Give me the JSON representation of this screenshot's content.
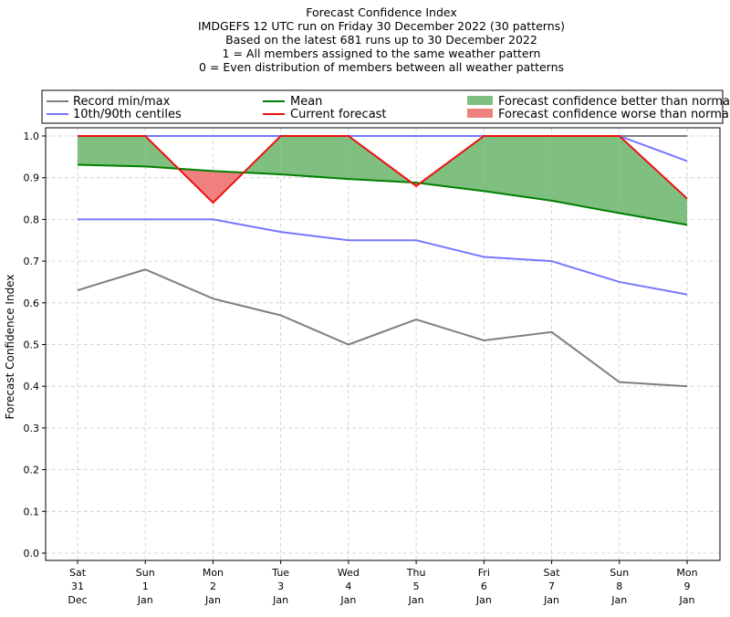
{
  "chart_data": {
    "type": "line",
    "title_lines": [
      "Forecast Confidence Index",
      "IMDGEFS 12 UTC run on Friday 30 December 2022 (30 patterns)",
      "Based on the latest 681 runs up to 30 December 2022",
      "1 = All members assigned to the same weather pattern",
      "0 = Even distribution of members between all weather patterns"
    ],
    "ylabel": "Forecast Confidence Index",
    "ylim": [
      0.0,
      1.0
    ],
    "yticks": [
      "0.0",
      "0.1",
      "0.2",
      "0.3",
      "0.4",
      "0.5",
      "0.6",
      "0.7",
      "0.8",
      "0.9",
      "1.0"
    ],
    "grid": true,
    "categories": [
      [
        "Sat",
        "31",
        "Dec"
      ],
      [
        "Sun",
        "1",
        "Jan"
      ],
      [
        "Mon",
        "2",
        "Jan"
      ],
      [
        "Tue",
        "3",
        "Jan"
      ],
      [
        "Wed",
        "4",
        "Jan"
      ],
      [
        "Thu",
        "5",
        "Jan"
      ],
      [
        "Fri",
        "6",
        "Jan"
      ],
      [
        "Sat",
        "7",
        "Jan"
      ],
      [
        "Sun",
        "8",
        "Jan"
      ],
      [
        "Mon",
        "9",
        "Jan"
      ]
    ],
    "series": [
      {
        "name": "Record min/max",
        "role": "record_min",
        "color": "#7f7f7f",
        "values": [
          0.63,
          0.68,
          0.61,
          0.57,
          0.5,
          0.56,
          0.51,
          0.53,
          0.41,
          0.4
        ]
      },
      {
        "name": "Record min/max",
        "role": "record_max",
        "color": "#7f7f7f",
        "values": [
          1.0,
          1.0,
          1.0,
          1.0,
          1.0,
          1.0,
          1.0,
          1.0,
          1.0,
          1.0
        ]
      },
      {
        "name": "10th/90th centiles",
        "role": "p10",
        "color": "#7777ff",
        "values": [
          0.8,
          0.8,
          0.8,
          0.77,
          0.75,
          0.75,
          0.71,
          0.7,
          0.65,
          0.62
        ]
      },
      {
        "name": "10th/90th centiles",
        "role": "p90",
        "color": "#7777ff",
        "values": [
          1.0,
          1.0,
          1.0,
          1.0,
          1.0,
          1.0,
          1.0,
          1.0,
          1.0,
          0.94
        ]
      },
      {
        "name": "Mean",
        "role": "mean",
        "color": "#007f00",
        "values": [
          0.931,
          0.927,
          0.916,
          0.908,
          0.897,
          0.888,
          0.868,
          0.845,
          0.815,
          0.787
        ]
      },
      {
        "name": "Current forecast",
        "role": "current",
        "color": "#ee1111",
        "values": [
          1.0,
          1.0,
          0.84,
          1.0,
          1.0,
          0.88,
          1.0,
          1.0,
          1.0,
          0.85
        ]
      }
    ],
    "legend": {
      "placement": "top",
      "entries": [
        {
          "label": "Record min/max",
          "kind": "line",
          "color": "#7f7f7f"
        },
        {
          "label": "10th/90th centiles",
          "kind": "line",
          "color": "#7777ff"
        },
        {
          "label": "Mean",
          "kind": "line",
          "color": "#007f00"
        },
        {
          "label": "Current forecast",
          "kind": "line",
          "color": "#ee1111"
        },
        {
          "label": "Forecast confidence better than normal",
          "kind": "patch",
          "color": "#7fbf7f"
        },
        {
          "label": "Forecast confidence worse than normal",
          "kind": "patch",
          "color": "#f08080"
        }
      ]
    },
    "colors": {
      "better_fill": "#7fbf7f",
      "worse_fill": "#f08080",
      "grid": "#cccccc"
    }
  }
}
